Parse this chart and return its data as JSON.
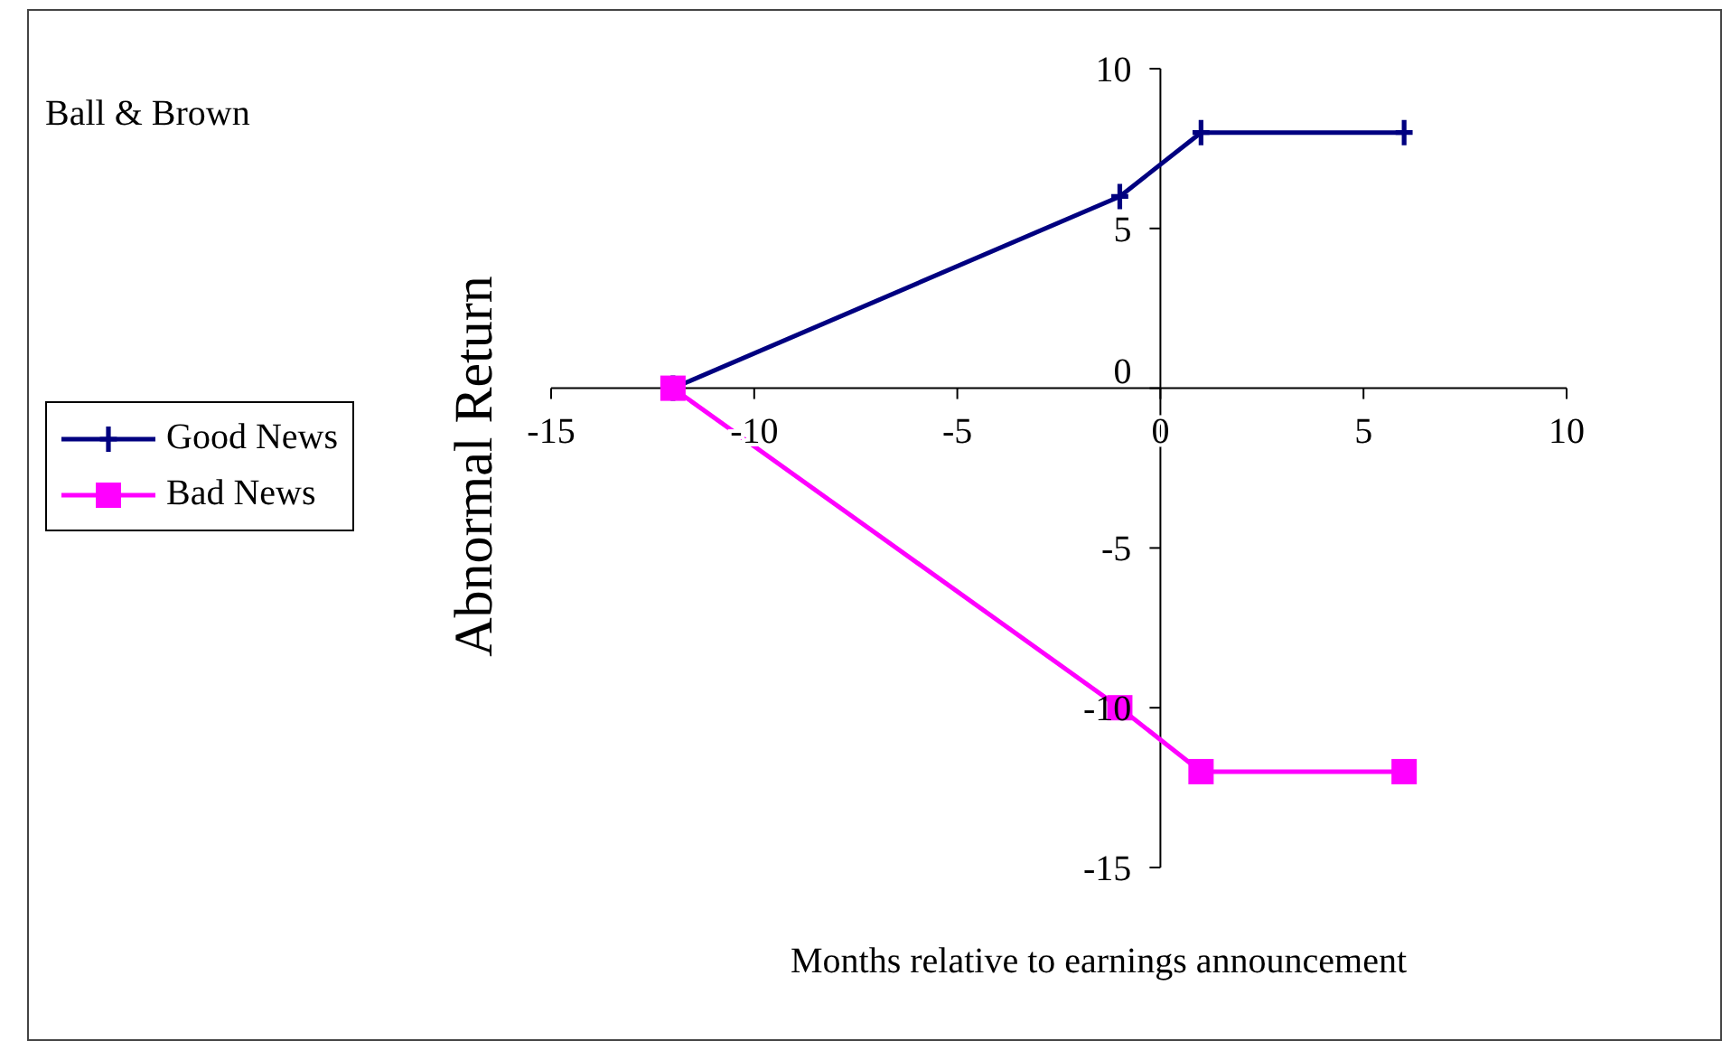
{
  "chart_data": {
    "type": "line",
    "title": "Ball & Brown",
    "xlabel": "Months relative to earnings announcement",
    "ylabel": "Abnormal Return",
    "xlim": [
      -15,
      10
    ],
    "xticks": [
      -15,
      -10,
      -5,
      0,
      5,
      10
    ],
    "ylim": [
      -15,
      10
    ],
    "yticks": [
      -15,
      -10,
      -5,
      0,
      5,
      10
    ],
    "grid": false,
    "legend": "left",
    "series": [
      {
        "name": "Good News",
        "color": "#000080",
        "x": [
          -12,
          -1,
          1,
          6
        ],
        "values": [
          0,
          6,
          8,
          8
        ],
        "marker": "cross"
      },
      {
        "name": "Bad News",
        "color": "#ff00ff",
        "x": [
          -12,
          -1,
          1,
          6
        ],
        "values": [
          0,
          -10,
          -12,
          -12
        ],
        "marker": "square"
      }
    ]
  }
}
